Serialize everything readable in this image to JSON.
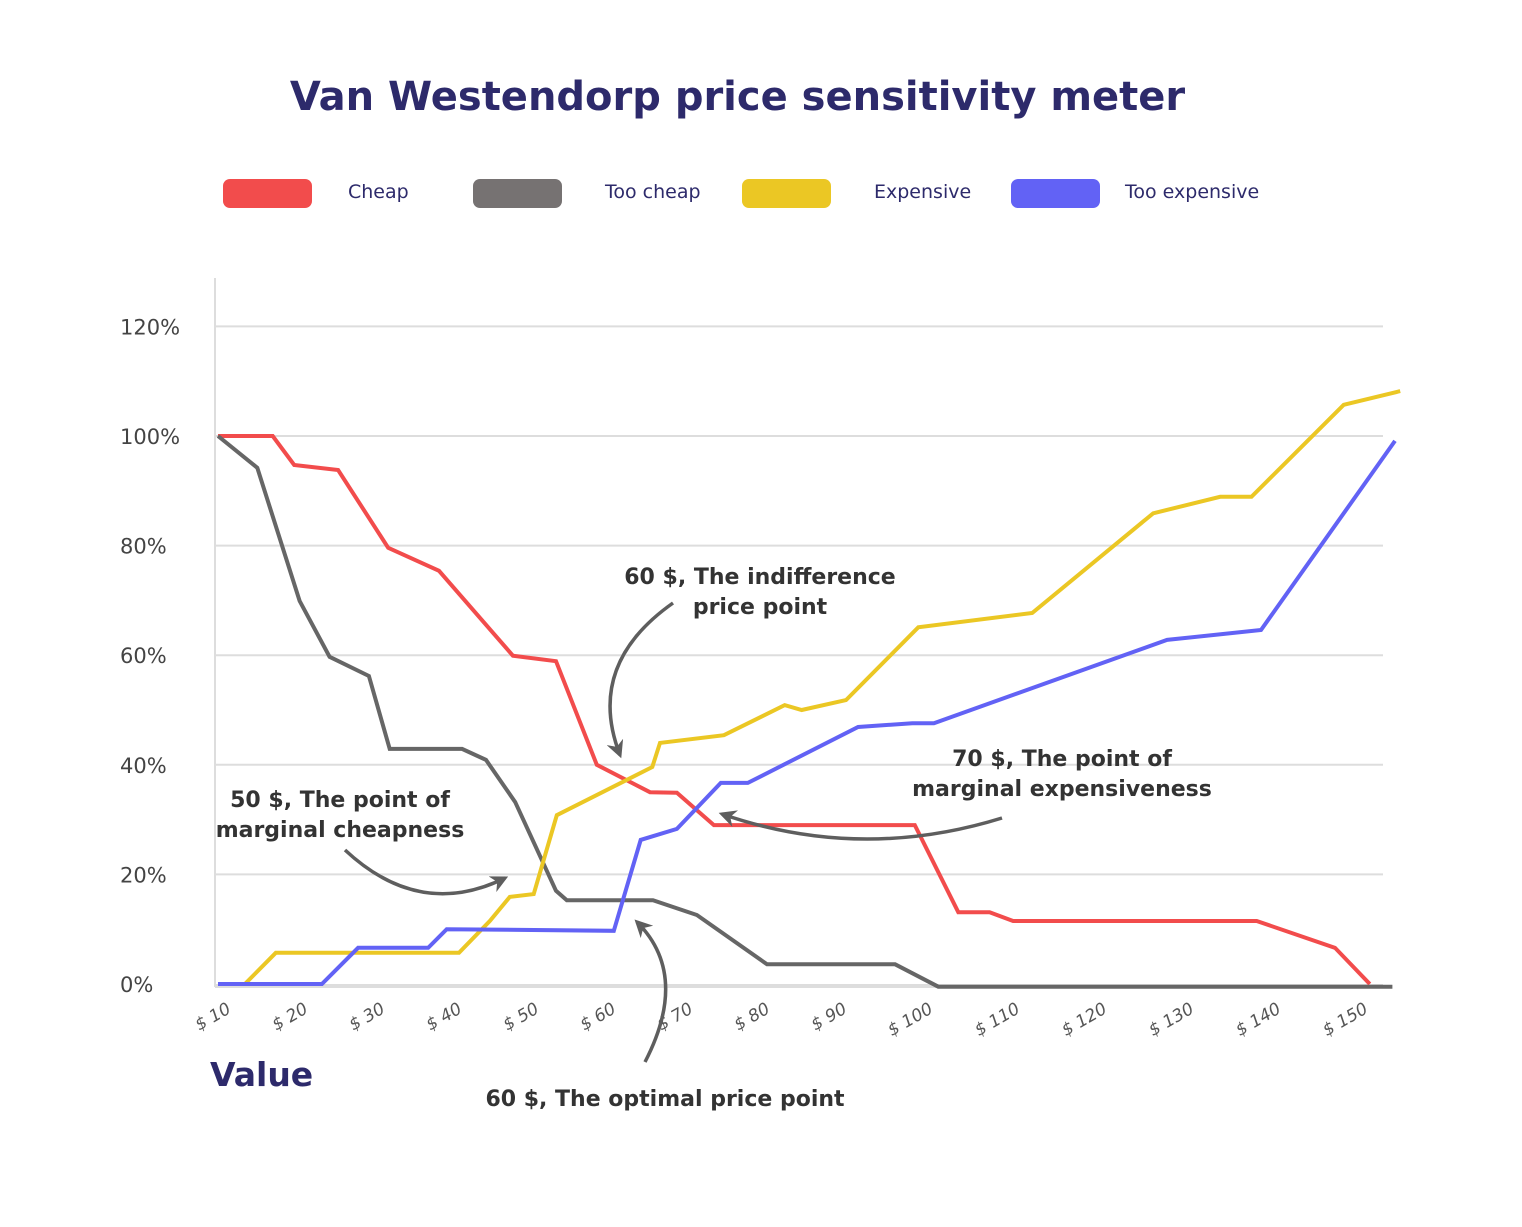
{
  "chart_data": {
    "type": "line",
    "title": "Van Westendorp price sensitivity meter",
    "xlabel": "Value",
    "ylabel": "",
    "x_tick_labels": [
      "$ 10",
      "$ 20",
      "$ 30",
      "$ 40",
      "$ 50",
      "$ 60",
      "$ 70",
      "$ 80",
      "$ 90",
      "$ 100",
      "$ 110",
      "$ 120",
      "$ 130",
      "$ 140",
      "$ 150"
    ],
    "x_ticks": [
      10,
      20,
      30,
      40,
      50,
      60,
      70,
      80,
      90,
      100,
      110,
      120,
      130,
      140,
      150
    ],
    "y_tick_labels": [
      "0%",
      "20%",
      "40%",
      "60%",
      "80%",
      "100%",
      "120%"
    ],
    "y_ticks": [
      0,
      20,
      40,
      60,
      80,
      100,
      120
    ],
    "ylim": [
      0,
      120
    ],
    "grid": "horizontal",
    "legend_placement": "top",
    "series": [
      {
        "name": "Cheap",
        "color": "#f24c4c",
        "points": [
          [
            10,
            100
          ],
          [
            17.1,
            100
          ],
          [
            19.9,
            94.7
          ],
          [
            25.6,
            93.8
          ],
          [
            32.1,
            79.6
          ],
          [
            38.7,
            75.4
          ],
          [
            48.3,
            59.9
          ],
          [
            53.9,
            58.9
          ],
          [
            59.2,
            40
          ],
          [
            66.1,
            35
          ],
          [
            69.6,
            34.9
          ],
          [
            74.4,
            29
          ],
          [
            99.4,
            29
          ],
          [
            104.4,
            13.1
          ],
          [
            108,
            13.1
          ],
          [
            110.7,
            11.5
          ],
          [
            138.7,
            11.5
          ],
          [
            147.7,
            6.6
          ],
          [
            151.7,
            0
          ]
        ]
      },
      {
        "name": "Too cheap",
        "color": "#666666",
        "points": [
          [
            10,
            100
          ],
          [
            15.1,
            94.2
          ],
          [
            20.6,
            69.9
          ],
          [
            24.5,
            59.7
          ],
          [
            29.6,
            56.2
          ],
          [
            32.3,
            42.9
          ],
          [
            41.7,
            42.9
          ],
          [
            44.8,
            40.9
          ],
          [
            48.6,
            33.2
          ],
          [
            53.9,
            17
          ],
          [
            55.3,
            15.3
          ],
          [
            66.5,
            15.3
          ],
          [
            72.2,
            12.6
          ],
          [
            81.3,
            3.6
          ],
          [
            97.1,
            3.6
          ],
          [
            102.1,
            -0.5
          ],
          [
            154.3,
            -0.5
          ]
        ]
      },
      {
        "name": "Expensive",
        "color": "#ebc724",
        "points": [
          [
            13.5,
            0
          ],
          [
            17.5,
            5.7
          ],
          [
            41.3,
            5.7
          ],
          [
            45.3,
            11.5
          ],
          [
            47.9,
            15.9
          ],
          [
            51,
            16.4
          ],
          [
            54,
            30.8
          ],
          [
            66.4,
            39.6
          ],
          [
            67.4,
            44
          ],
          [
            75.7,
            45.4
          ],
          [
            83.6,
            50.9
          ],
          [
            85.8,
            50
          ],
          [
            91.4,
            51.8
          ],
          [
            99.8,
            65.1
          ],
          [
            112.9,
            67.7
          ],
          [
            126.8,
            85.9
          ],
          [
            134.5,
            88.9
          ],
          [
            138.1,
            88.9
          ],
          [
            148.7,
            105.7
          ],
          [
            155.2,
            108.2
          ]
        ]
      },
      {
        "name": "Too expensive",
        "color": "#6262f5",
        "points": [
          [
            10,
            0
          ],
          [
            23.5,
            0
          ],
          [
            28.2,
            6.6
          ],
          [
            37.3,
            6.6
          ],
          [
            39.7,
            10
          ],
          [
            61.4,
            9.7
          ],
          [
            64.9,
            26.3
          ],
          [
            69.6,
            28.3
          ],
          [
            75.3,
            36.7
          ],
          [
            78.8,
            36.7
          ],
          [
            92.8,
            46.9
          ],
          [
            99.1,
            47.6
          ],
          [
            101.6,
            47.6
          ],
          [
            128.4,
            62.8
          ],
          [
            139.2,
            64.6
          ],
          [
            154.6,
            99.1
          ]
        ]
      }
    ],
    "legend_swatch_colors": {
      "cheap": "#f24c4c",
      "too_cheap": "#767272",
      "expensive": "#ebc724",
      "too_expensive": "#6262f5"
    },
    "annotations": [
      {
        "lines": [
          "60 $, The indifference",
          "price point"
        ]
      },
      {
        "lines": [
          "70 $, The point of",
          "marginal expensiveness"
        ]
      },
      {
        "lines": [
          "50 $, The point of",
          "marginal cheapness"
        ]
      },
      {
        "lines": [
          "60 $, The optimal price point"
        ]
      }
    ]
  }
}
